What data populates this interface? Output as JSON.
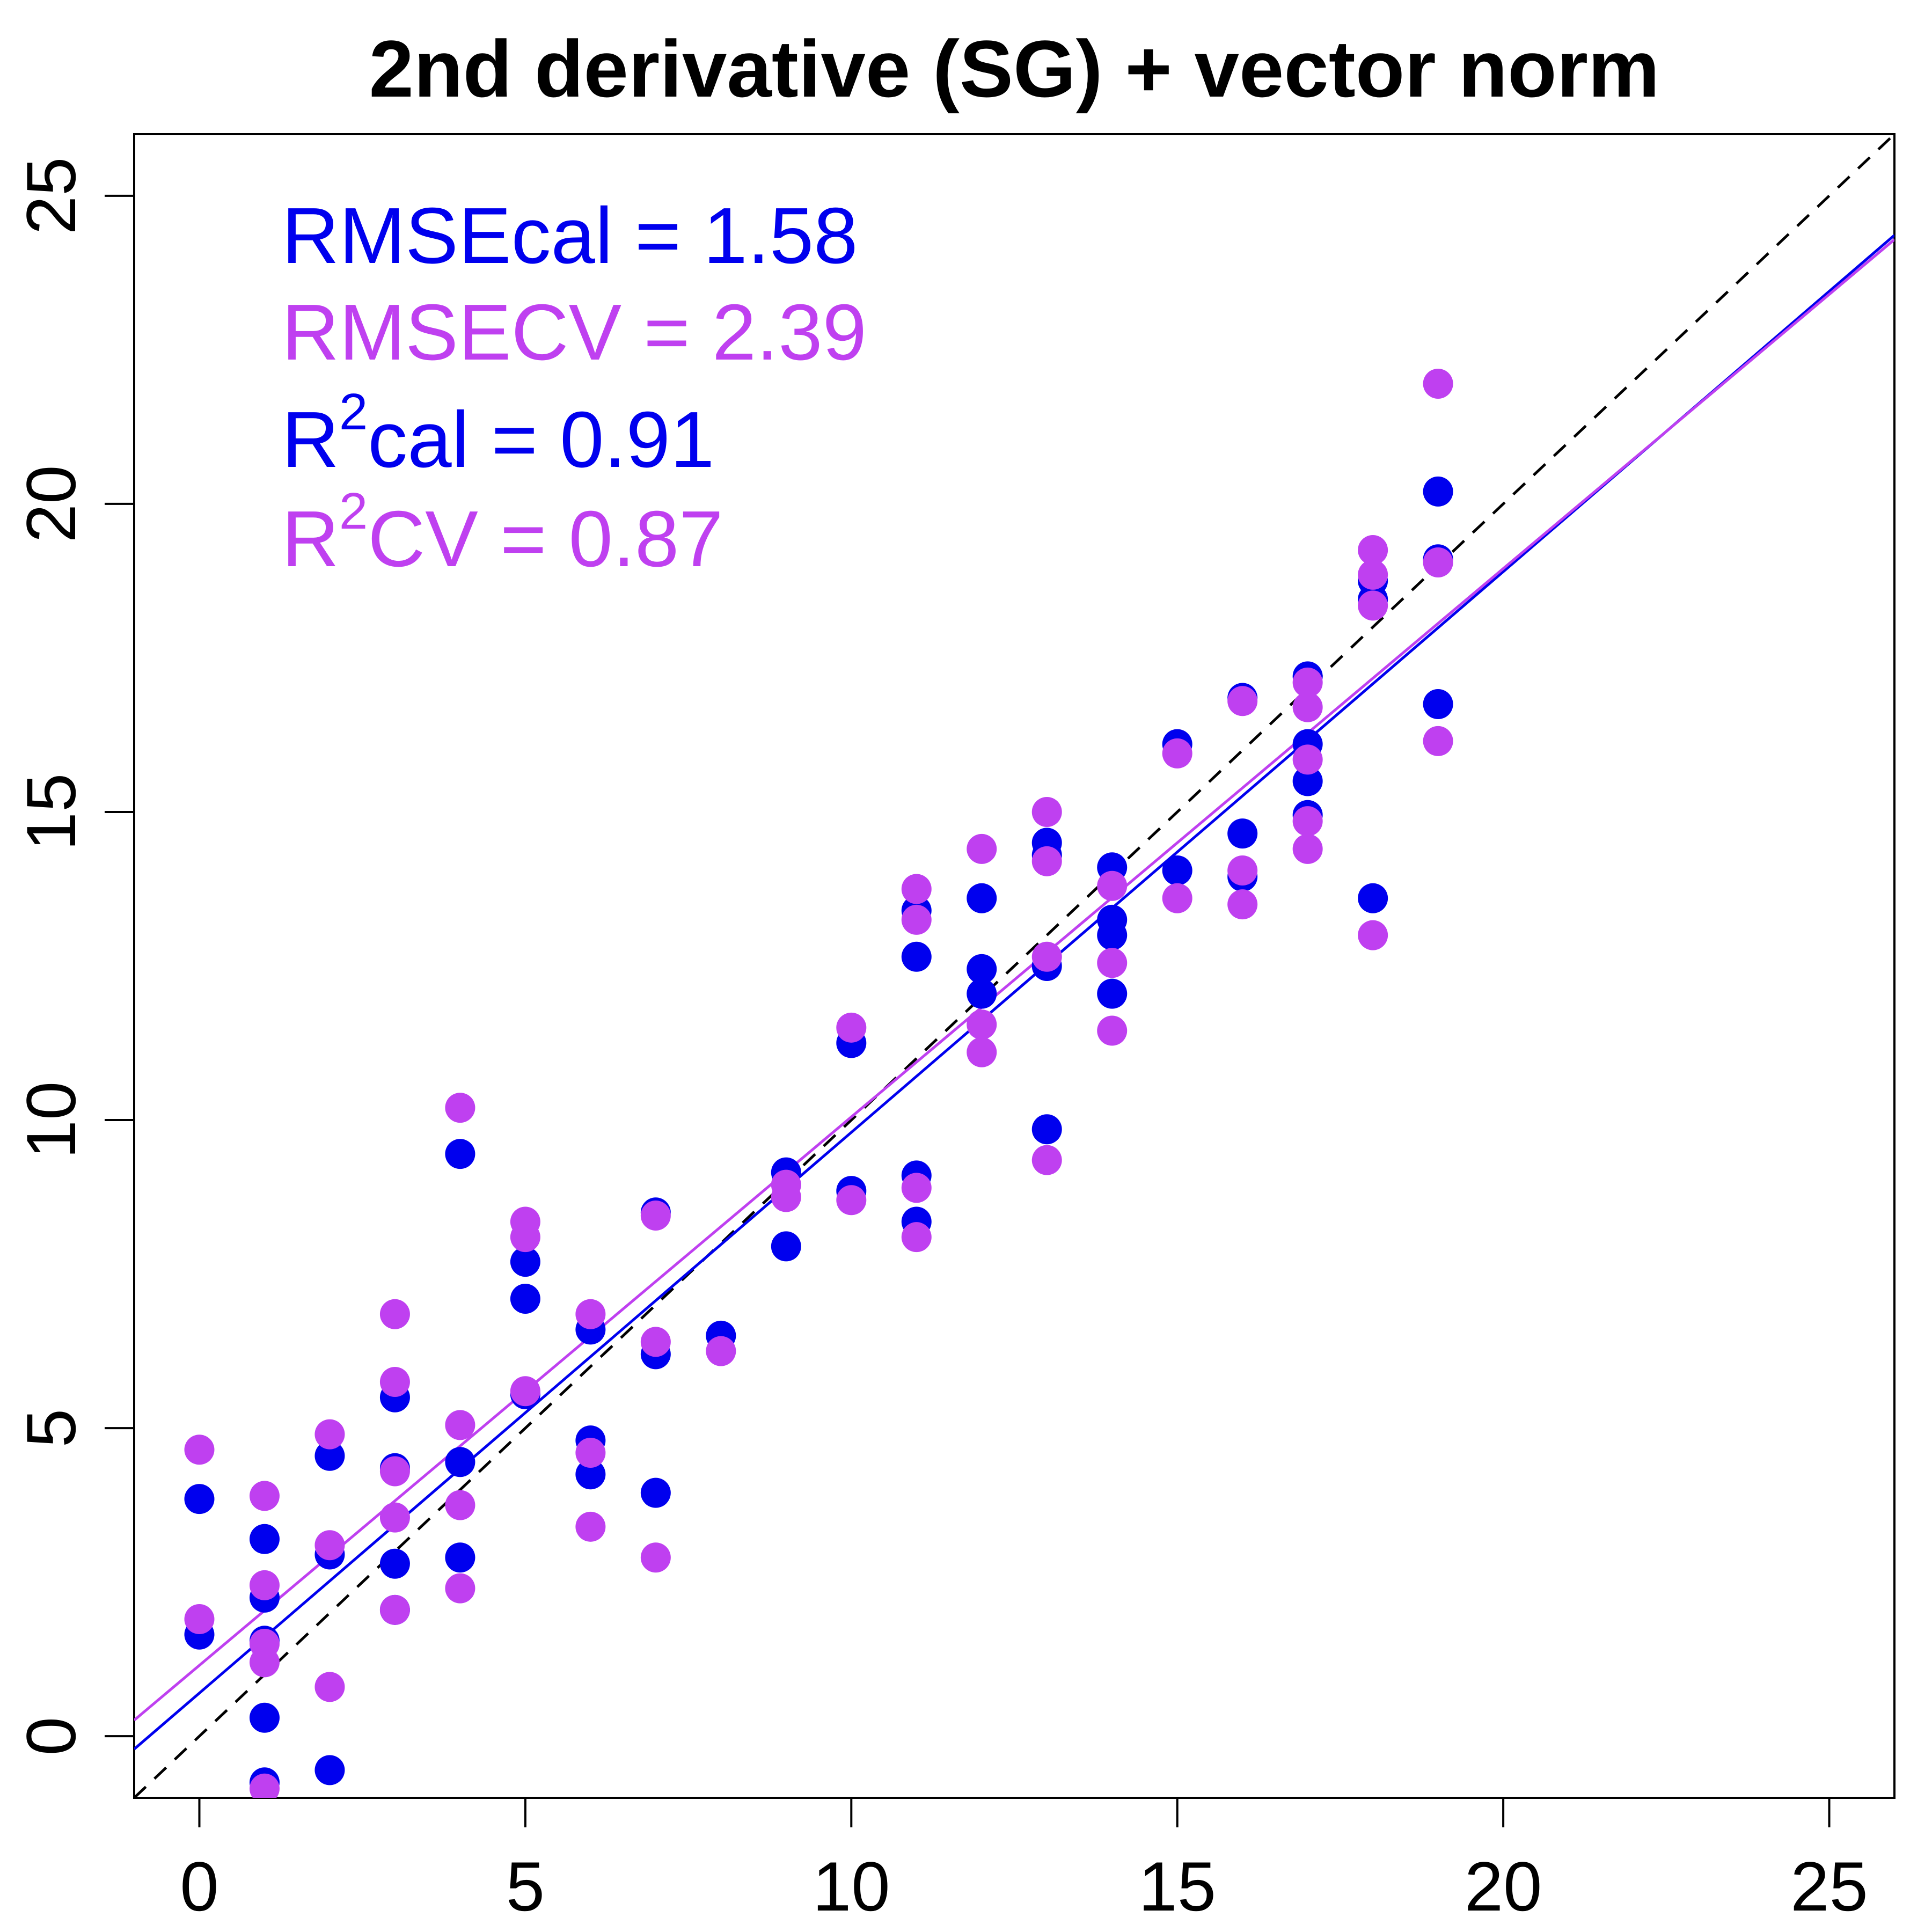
{
  "chart_data": {
    "type": "scatter",
    "title": "2nd derivative (SG) + vector norm",
    "xlabel": "",
    "ylabel": "",
    "xlim": [
      -1,
      26
    ],
    "ylim": [
      -1,
      26
    ],
    "x_ticks": [
      0,
      5,
      10,
      15,
      20,
      25
    ],
    "y_ticks": [
      0,
      5,
      10,
      15,
      20,
      25
    ],
    "x_tick_labels": [
      "0",
      "5",
      "10",
      "15",
      "20",
      "25"
    ],
    "y_tick_labels": [
      "0",
      "5",
      "10",
      "15",
      "20",
      "25"
    ],
    "grid": false,
    "colors": {
      "cal": "#0000EE",
      "cv": "#BF40F0",
      "axis": "#000000"
    },
    "stats": {
      "rmse_cal": "RMSEcal = 1.58",
      "rmse_cv": "RMSECV = 2.39",
      "r2_cal_prefix": "R",
      "r2_cal_sup": "2",
      "r2_cal_rest": "cal = 0.91",
      "r2_cv_prefix": "R",
      "r2_cv_sup": "2",
      "r2_cv_rest": "CV = 0.87"
    },
    "identity_line": {
      "style": "dashed",
      "slope": 1,
      "intercept": 0
    },
    "regression_lines": [
      {
        "series": "cal",
        "slope": 0.91,
        "intercept": 0.7
      },
      {
        "series": "cv",
        "slope": 0.89,
        "intercept": 1.15
      }
    ],
    "series": [
      {
        "key": "cal",
        "points": [
          [
            0,
            3.85
          ],
          [
            0,
            1.65
          ],
          [
            1,
            3.2
          ],
          [
            1,
            2.25
          ],
          [
            1,
            1.55
          ],
          [
            1,
            0.3
          ],
          [
            1,
            -0.75
          ],
          [
            2,
            4.55
          ],
          [
            2,
            2.95
          ],
          [
            2,
            -0.55
          ],
          [
            3,
            5.5
          ],
          [
            3,
            4.35
          ],
          [
            3,
            2.8
          ],
          [
            3,
            2.05
          ],
          [
            4,
            9.45
          ],
          [
            4,
            4.45
          ],
          [
            4,
            2.9
          ],
          [
            5,
            7.7
          ],
          [
            5,
            7.1
          ],
          [
            5,
            5.55
          ],
          [
            6,
            6.6
          ],
          [
            6,
            4.8
          ],
          [
            6,
            4.25
          ],
          [
            7,
            8.5
          ],
          [
            7,
            6.2
          ],
          [
            7,
            3.95
          ],
          [
            8,
            6.5
          ],
          [
            9,
            9.15
          ],
          [
            9,
            7.95
          ],
          [
            10,
            11.25
          ],
          [
            10,
            8.85
          ],
          [
            11,
            13.4
          ],
          [
            11,
            12.65
          ],
          [
            11,
            9.1
          ],
          [
            11,
            8.35
          ],
          [
            12,
            13.6
          ],
          [
            12,
            12.45
          ],
          [
            12,
            12.05
          ],
          [
            13,
            14.5
          ],
          [
            13,
            14.3
          ],
          [
            13,
            12.5
          ],
          [
            13,
            9.85
          ],
          [
            14,
            14.1
          ],
          [
            14,
            13.25
          ],
          [
            14,
            13.0
          ],
          [
            14,
            12.05
          ],
          [
            15,
            16.1
          ],
          [
            15,
            14.05
          ],
          [
            16,
            16.85
          ],
          [
            16,
            14.65
          ],
          [
            16,
            13.95
          ],
          [
            17,
            17.2
          ],
          [
            17,
            16.1
          ],
          [
            17,
            15.5
          ],
          [
            17,
            14.95
          ],
          [
            18,
            18.75
          ],
          [
            18,
            18.45
          ],
          [
            18,
            13.6
          ],
          [
            19,
            20.2
          ],
          [
            19,
            19.1
          ],
          [
            19,
            16.75
          ]
        ]
      },
      {
        "key": "cv",
        "points": [
          [
            0,
            4.65
          ],
          [
            0,
            1.9
          ],
          [
            1,
            3.9
          ],
          [
            1,
            2.45
          ],
          [
            1,
            1.5
          ],
          [
            1,
            1.2
          ],
          [
            1,
            -0.85
          ],
          [
            2,
            4.9
          ],
          [
            2,
            3.1
          ],
          [
            2,
            0.8
          ],
          [
            3,
            6.85
          ],
          [
            3,
            5.75
          ],
          [
            3,
            4.3
          ],
          [
            3,
            3.55
          ],
          [
            3,
            2.05
          ],
          [
            4,
            10.2
          ],
          [
            4,
            5.05
          ],
          [
            4,
            3.75
          ],
          [
            4,
            2.4
          ],
          [
            5,
            8.35
          ],
          [
            5,
            8.1
          ],
          [
            5,
            5.6
          ],
          [
            6,
            6.85
          ],
          [
            6,
            4.6
          ],
          [
            6,
            3.4
          ],
          [
            7,
            8.45
          ],
          [
            7,
            6.4
          ],
          [
            7,
            2.9
          ],
          [
            8,
            6.25
          ],
          [
            9,
            8.95
          ],
          [
            9,
            8.75
          ],
          [
            10,
            11.5
          ],
          [
            10,
            8.7
          ],
          [
            11,
            13.75
          ],
          [
            11,
            13.25
          ],
          [
            11,
            8.9
          ],
          [
            11,
            8.1
          ],
          [
            12,
            14.4
          ],
          [
            12,
            11.55
          ],
          [
            12,
            11.1
          ],
          [
            13,
            15.0
          ],
          [
            13,
            14.2
          ],
          [
            13,
            12.65
          ],
          [
            13,
            9.35
          ],
          [
            14,
            13.8
          ],
          [
            14,
            12.55
          ],
          [
            14,
            11.45
          ],
          [
            15,
            15.95
          ],
          [
            15,
            13.6
          ],
          [
            16,
            16.8
          ],
          [
            16,
            14.05
          ],
          [
            16,
            13.5
          ],
          [
            17,
            17.1
          ],
          [
            17,
            16.7
          ],
          [
            17,
            15.85
          ],
          [
            17,
            14.85
          ],
          [
            17,
            14.4
          ],
          [
            18,
            19.25
          ],
          [
            18,
            18.85
          ],
          [
            18,
            18.35
          ],
          [
            18,
            13.0
          ],
          [
            19,
            21.95
          ],
          [
            19,
            19.05
          ],
          [
            19,
            16.15
          ]
        ]
      }
    ]
  }
}
